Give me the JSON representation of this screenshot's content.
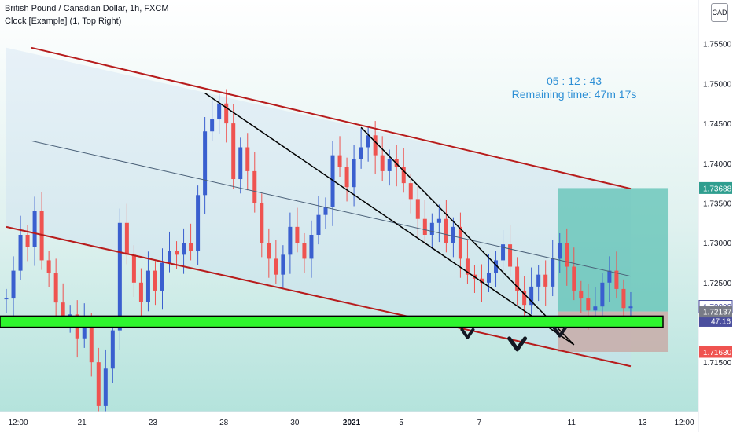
{
  "header": {
    "title": "British Pound / Canadian Dollar, 1h, FXCM",
    "indicator": "Clock [Example] (1, Top Right)",
    "currency_badge": "CAD"
  },
  "clock": {
    "time": "05 : 12 : 43",
    "remaining": "Remaining time: 47m 17s"
  },
  "colors": {
    "channel": "#b71c1c",
    "midline": "#4a6078",
    "trendline": "#000000",
    "support_zone": "#2ef52e",
    "profit_zone": "#5ec1b4",
    "loss_zone": "#c8a8a4",
    "candle_up": "#3a5fcf",
    "candle_down": "#ef5350",
    "clock_text": "#2d8fd5"
  },
  "chart_data": {
    "type": "candlestick",
    "symbol": "GBPCAD",
    "timeframe": "1h",
    "x_ticks": [
      "12:00",
      "21",
      "23",
      "28",
      "30",
      "2021",
      "5",
      "7",
      "11",
      "13",
      "12:00"
    ],
    "y_ticks": [
      "1.75500",
      "1.75000",
      "1.74500",
      "1.74000",
      "1.73500",
      "1.73000",
      "1.72500",
      "1.71500"
    ],
    "ylim": [
      1.7088,
      1.7605
    ],
    "grid": false,
    "price_line_series": [
      1.723,
      1.7265,
      1.731,
      1.7295,
      1.734,
      1.7278,
      1.7262,
      1.7225,
      1.7205,
      1.721,
      1.718,
      1.72,
      1.715,
      1.7095,
      1.7142,
      1.719,
      1.7325,
      1.7285,
      1.725,
      1.7226,
      1.7265,
      1.724,
      1.7275,
      1.729,
      1.7285,
      1.73,
      1.729,
      1.736,
      1.744,
      1.7455,
      1.7475,
      1.745,
      1.738,
      1.742,
      1.739,
      1.735,
      1.73,
      1.728,
      1.726,
      1.7285,
      1.732,
      1.73,
      1.728,
      1.731,
      1.7335,
      1.7345,
      1.741,
      1.7395,
      1.737,
      1.7405,
      1.742,
      1.7435,
      1.741,
      1.739,
      1.7405,
      1.7395,
      1.7375,
      1.7355,
      1.733,
      1.731,
      1.7325,
      1.733,
      1.73,
      1.732,
      1.728,
      1.726,
      1.7255,
      1.725,
      1.7262,
      1.7278,
      1.7298,
      1.727,
      1.724,
      1.7222,
      1.7245,
      1.726,
      1.7245,
      1.728,
      1.73,
      1.727,
      1.724,
      1.723,
      1.7215,
      1.722,
      1.725,
      1.7265,
      1.7242,
      1.7218,
      1.722
    ],
    "price_labels": [
      {
        "text": "1.73688",
        "value": 1.73688,
        "role": "take-profit"
      },
      {
        "text": "1.72202",
        "value": 1.72202,
        "role": "last-price"
      },
      {
        "text": "47:16",
        "value": 1.7202,
        "role": "countdown"
      },
      {
        "text": "1.72137",
        "value": 1.72137,
        "role": "entry"
      },
      {
        "text": "1.71630",
        "value": 1.7163,
        "role": "stop-loss"
      }
    ],
    "channel_upper": [
      [
        0,
        1.7545
      ],
      [
        88,
        1.7368
      ]
    ],
    "channel_lower": [
      [
        0,
        1.732
      ],
      [
        88,
        1.7145
      ]
    ],
    "channel_mid": [
      [
        0,
        1.7428
      ],
      [
        88,
        1.7258
      ]
    ],
    "trendlines": [
      [
        [
          28,
          1.7488
        ],
        [
          80,
          1.7172
        ]
      ],
      [
        [
          50,
          1.7445
        ],
        [
          80,
          1.7172
        ]
      ]
    ],
    "support_zone": [
      1.7208,
      1.7194
    ],
    "position": {
      "entry": 1.72137,
      "take_profit": 1.73688,
      "stop_loss": 1.7163,
      "x_start": 78,
      "x_end": 91
    },
    "markers": [
      {
        "x": 65,
        "value": 1.7186,
        "size": "small"
      },
      {
        "x": 72,
        "value": 1.7173,
        "size": "large"
      },
      {
        "x": 78,
        "value": 1.7188,
        "size": "small"
      }
    ]
  }
}
